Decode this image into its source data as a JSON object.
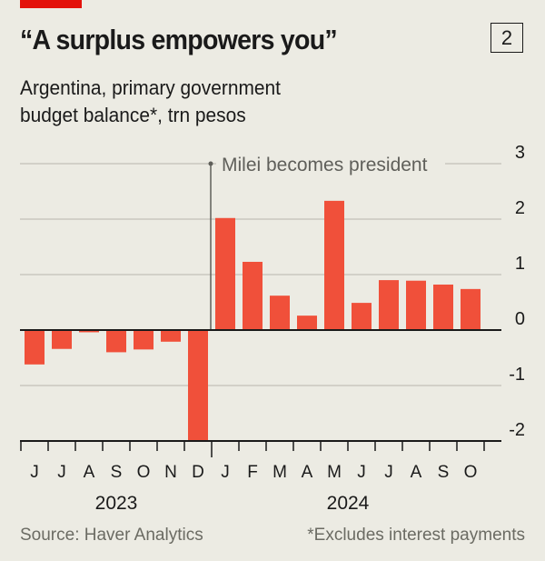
{
  "header": {
    "title": "“A surplus empowers you”",
    "badge": "2",
    "subtitle_line1": "Argentina, primary government",
    "subtitle_line2": "budget balance*, trn pesos"
  },
  "footer": {
    "source": "Source: Haver Analytics",
    "note": "*Excludes interest payments"
  },
  "colors": {
    "bar": "#f0503a",
    "accent": "#e3120b",
    "grid": "#c9c7bf",
    "axis": "#1a1a1a",
    "annotation": "#5f5f5a"
  },
  "chart_data": {
    "type": "bar",
    "title": "“A surplus empowers you”",
    "subtitle": "Argentina, primary government budget balance*, trn pesos",
    "categories": [
      "J",
      "J",
      "A",
      "S",
      "O",
      "N",
      "D",
      "J",
      "F",
      "M",
      "A",
      "M",
      "J",
      "J",
      "A",
      "S",
      "O"
    ],
    "periods": [
      "2023-06",
      "2023-07",
      "2023-08",
      "2023-09",
      "2023-10",
      "2023-11",
      "2023-12",
      "2024-01",
      "2024-02",
      "2024-03",
      "2024-04",
      "2024-05",
      "2024-06",
      "2024-07",
      "2024-08",
      "2024-09",
      "2024-10"
    ],
    "values": [
      -0.62,
      -0.34,
      -0.04,
      -0.4,
      -0.35,
      -0.21,
      -2.0,
      2.02,
      1.23,
      0.62,
      0.26,
      2.33,
      0.49,
      0.9,
      0.89,
      0.82,
      0.74
    ],
    "year_labels": [
      {
        "label": "2023",
        "start": 0,
        "end": 6
      },
      {
        "label": "2024",
        "start": 7,
        "end": 16
      }
    ],
    "ylim": [
      -2,
      3
    ],
    "yticks": [
      3,
      2,
      1,
      0,
      -1,
      -2
    ],
    "ytick_labels": [
      "3",
      "2",
      "1",
      "0",
      "-1",
      "-2"
    ],
    "y_axis_side": "right",
    "grid": true,
    "annotation": {
      "text": "Milei becomes president",
      "between_index": [
        6,
        7
      ]
    },
    "xlabel": "",
    "ylabel": ""
  }
}
